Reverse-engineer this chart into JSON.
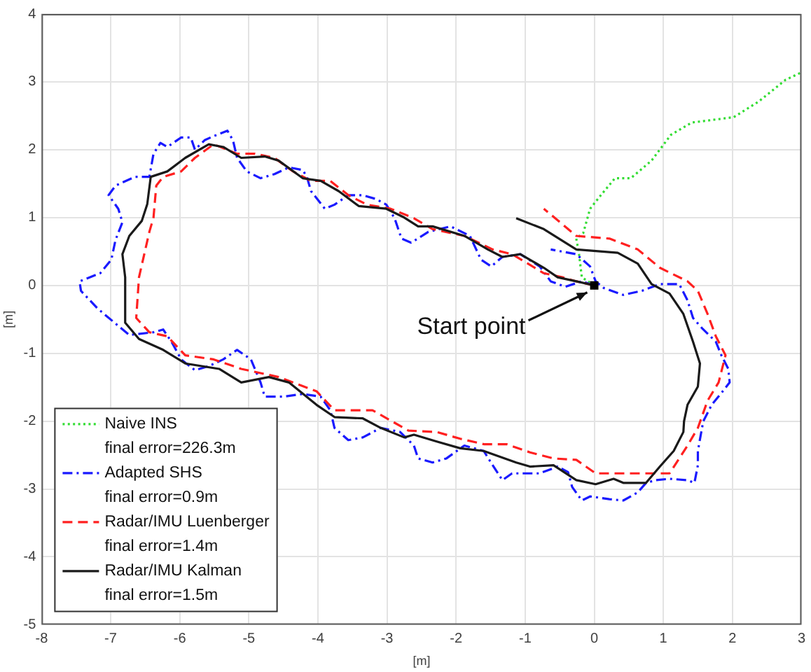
{
  "chart_data": {
    "type": "line",
    "xlabel": "[m]",
    "ylabel": "[m]",
    "xlim": [
      -8,
      3
    ],
    "xticks": [
      -8,
      -7,
      -6,
      -5,
      -4,
      -3,
      -2,
      -1,
      0,
      1,
      2,
      3
    ],
    "ylim": [
      -5,
      4
    ],
    "yticks": [
      -5,
      -4,
      -3,
      -2,
      -1,
      0,
      1,
      2,
      3,
      4
    ],
    "grid": true,
    "legend": "bottom left",
    "annotations": [
      {
        "text": "Start point",
        "x": 0,
        "y": 0
      }
    ],
    "series": [
      {
        "name": "Naive INS\nfinal error=226.3m",
        "color": "#33dd33",
        "line_style": "dotted",
        "x": [
          0,
          -0.18,
          -0.22,
          -0.26,
          -0.16,
          -0.06,
          0.08,
          0.3,
          0.53,
          0.83,
          1.11,
          1.41,
          1.72,
          2.02,
          2.38,
          2.77,
          2.98
        ],
        "values": [
          0,
          0.12,
          0.46,
          0.69,
          0.77,
          1.13,
          1.31,
          1.58,
          1.58,
          1.84,
          2.22,
          2.4,
          2.44,
          2.48,
          2.71,
          3.03,
          3.13
        ]
      },
      {
        "name": "Adapted SHS\nfinal error=0.9m",
        "color": "#1a1aff",
        "line_style": "dashdot",
        "x": [
          0,
          -0.18,
          -0.42,
          -0.63,
          -0.79,
          -1.07,
          -1.33,
          -1.49,
          -1.64,
          -1.8,
          -2.08,
          -2.4,
          -2.65,
          -2.79,
          -2.89,
          -3.01,
          -3.15,
          -3.35,
          -3.56,
          -3.76,
          -3.9,
          -4.1,
          -4.16,
          -4.22,
          -4.42,
          -4.63,
          -4.83,
          -5.03,
          -5.17,
          -5.23,
          -5.31,
          -5.51,
          -5.64,
          -5.78,
          -5.84,
          -5.98,
          -6.18,
          -6.28,
          -6.38,
          -6.44,
          -6.65,
          -6.93,
          -7.03,
          -6.89,
          -6.83,
          -6.93,
          -6.99,
          -7.15,
          -7.45,
          -7.43,
          -7.19,
          -6.85,
          -6.73,
          -6.38,
          -6.24,
          -6.12,
          -5.98,
          -5.78,
          -5.58,
          -5.37,
          -5.17,
          -4.97,
          -4.83,
          -4.77,
          -4.5,
          -4.22,
          -3.96,
          -3.82,
          -3.76,
          -3.56,
          -3.35,
          -3.09,
          -2.81,
          -2.61,
          -2.55,
          -2.34,
          -2.14,
          -1.88,
          -1.6,
          -1.47,
          -1.33,
          -1.19,
          -0.79,
          -0.53,
          -0.38,
          -0.32,
          -0.18,
          -0.06,
          0.22,
          0.42,
          0.63,
          0.75,
          0.89,
          1.09,
          1.35,
          1.45,
          1.5,
          1.5,
          1.56,
          1.58,
          1.7,
          1.86,
          1.96,
          1.94,
          1.84,
          1.76,
          1.56,
          1.43,
          1.35,
          1.23,
          0.95,
          0.69,
          0.42,
          0.14,
          0.02,
          -0.06,
          -0.26,
          -0.63
        ],
        "values": [
          0,
          0.06,
          -0.02,
          0.06,
          0.28,
          0.46,
          0.42,
          0.28,
          0.38,
          0.73,
          0.87,
          0.79,
          0.63,
          0.69,
          0.99,
          1.19,
          1.27,
          1.33,
          1.33,
          1.19,
          1.13,
          1.39,
          1.6,
          1.7,
          1.74,
          1.64,
          1.58,
          1.68,
          1.88,
          2.14,
          2.28,
          2.2,
          2.14,
          2.0,
          2.18,
          2.18,
          2.04,
          2.1,
          1.94,
          1.6,
          1.6,
          1.47,
          1.33,
          1.13,
          0.93,
          0.67,
          0.38,
          0.18,
          0.06,
          -0.08,
          -0.34,
          -0.63,
          -0.73,
          -0.69,
          -0.65,
          -0.83,
          -1.09,
          -1.25,
          -1.19,
          -1.09,
          -0.95,
          -1.09,
          -1.43,
          -1.64,
          -1.64,
          -1.6,
          -1.64,
          -1.84,
          -2.1,
          -2.28,
          -2.24,
          -2.1,
          -2.16,
          -2.36,
          -2.55,
          -2.61,
          -2.55,
          -2.36,
          -2.44,
          -2.65,
          -2.87,
          -2.77,
          -2.77,
          -2.67,
          -2.75,
          -2.97,
          -3.17,
          -3.11,
          -3.15,
          -3.17,
          -3.05,
          -2.91,
          -2.87,
          -2.85,
          -2.87,
          -2.91,
          -2.65,
          -2.44,
          -2.1,
          -2.0,
          -1.76,
          -1.56,
          -1.43,
          -1.23,
          -1.03,
          -0.83,
          -0.63,
          -0.48,
          -0.22,
          0.02,
          0.02,
          -0.08,
          -0.14,
          -0.04,
          0.06,
          0.28,
          0.46,
          0.53
        ]
      },
      {
        "name": "Radar/IMU Luenberger\nfinal error=1.4m",
        "color": "#ff2020",
        "line_style": "dashed",
        "x": [
          0,
          -0.26,
          -0.46,
          -0.73,
          -1.19,
          -1.47,
          -1.88,
          -2.34,
          -2.61,
          -2.95,
          -3.29,
          -3.56,
          -3.82,
          -4.1,
          -4.36,
          -4.63,
          -4.91,
          -5.17,
          -5.51,
          -5.78,
          -5.98,
          -6.24,
          -6.34,
          -6.38,
          -6.44,
          -6.59,
          -6.63,
          -6.44,
          -6.18,
          -5.92,
          -5.51,
          -5.11,
          -4.57,
          -4.02,
          -3.76,
          -3.21,
          -2.69,
          -2.28,
          -1.94,
          -1.6,
          -1.27,
          -0.93,
          -0.59,
          -0.26,
          0.02,
          0.28,
          0.75,
          1.09,
          1.35,
          1.5,
          1.64,
          1.8,
          1.9,
          1.76,
          1.64,
          1.5,
          1.35,
          0.95,
          0.63,
          0.22,
          -0.26,
          -0.73
        ],
        "values": [
          0,
          0.06,
          0.12,
          0.18,
          0.46,
          0.53,
          0.73,
          0.83,
          0.99,
          1.13,
          1.19,
          1.33,
          1.54,
          1.54,
          1.68,
          1.88,
          1.94,
          1.94,
          2.08,
          1.88,
          1.68,
          1.6,
          1.47,
          1.0,
          0.79,
          0.12,
          -0.48,
          -0.69,
          -0.75,
          -1.03,
          -1.09,
          -1.23,
          -1.35,
          -1.56,
          -1.84,
          -1.84,
          -2.14,
          -2.16,
          -2.26,
          -2.34,
          -2.34,
          -2.46,
          -2.55,
          -2.57,
          -2.77,
          -2.77,
          -2.77,
          -2.77,
          -2.36,
          -2.1,
          -1.7,
          -1.43,
          -1.03,
          -0.75,
          -0.42,
          -0.08,
          0.06,
          0.26,
          0.53,
          0.69,
          0.73,
          1.13
        ]
      },
      {
        "name": "Radar/IMU Kalman\nfinal error=1.5m",
        "color": "#1a1a1a",
        "line_style": "solid",
        "x": [
          0,
          -0.26,
          -0.53,
          -0.73,
          -1.07,
          -1.33,
          -1.54,
          -1.88,
          -2.34,
          -2.55,
          -2.75,
          -3.01,
          -3.41,
          -3.7,
          -3.96,
          -4.22,
          -4.57,
          -4.77,
          -5.11,
          -5.37,
          -5.58,
          -5.92,
          -6.18,
          -6.42,
          -6.47,
          -6.55,
          -6.73,
          -6.83,
          -6.79,
          -6.79,
          -6.59,
          -6.24,
          -5.92,
          -5.43,
          -5.11,
          -4.71,
          -4.42,
          -4.02,
          -3.76,
          -3.35,
          -3.09,
          -2.75,
          -2.61,
          -2.28,
          -1.94,
          -1.6,
          -1.13,
          -0.93,
          -0.59,
          -0.26,
          0.02,
          0.28,
          0.42,
          0.75,
          0.95,
          1.15,
          1.29,
          1.3,
          1.35,
          1.5,
          1.53,
          1.43,
          1.29,
          1.09,
          0.83,
          0.63,
          0.34,
          -0.26,
          -0.73,
          -1.13
        ],
        "values": [
          0,
          0.06,
          0.12,
          0.26,
          0.46,
          0.42,
          0.53,
          0.73,
          0.87,
          0.87,
          1.0,
          1.13,
          1.17,
          1.39,
          1.54,
          1.58,
          1.84,
          1.9,
          1.88,
          2.04,
          2.08,
          1.88,
          1.68,
          1.6,
          1.2,
          0.95,
          0.73,
          0.46,
          0.12,
          -0.55,
          -0.79,
          -0.95,
          -1.15,
          -1.23,
          -1.43,
          -1.35,
          -1.43,
          -1.76,
          -1.94,
          -1.96,
          -2.1,
          -2.24,
          -2.2,
          -2.3,
          -2.4,
          -2.44,
          -2.61,
          -2.67,
          -2.65,
          -2.87,
          -2.93,
          -2.85,
          -2.91,
          -2.91,
          -2.67,
          -2.44,
          -2.16,
          -2.0,
          -1.76,
          -1.49,
          -1.15,
          -0.83,
          -0.42,
          -0.12,
          0.02,
          0.32,
          0.48,
          0.53,
          0.83,
          0.99
        ]
      },
      {
        "type": "scatter",
        "marker": "square",
        "color": "#000000",
        "x": [
          0
        ],
        "values": [
          0
        ]
      }
    ]
  }
}
